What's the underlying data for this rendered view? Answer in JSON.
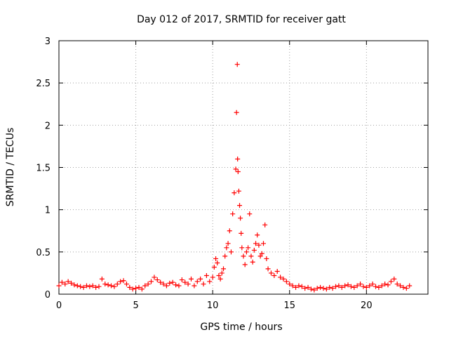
{
  "chart_data": {
    "type": "scatter",
    "title": "Day 012 of 2017, SRMTID for receiver gatt",
    "xlabel": "GPS time / hours",
    "ylabel": "SRMTID / TECUs",
    "xlim": [
      0,
      24
    ],
    "ylim": [
      0,
      3
    ],
    "x_ticks": [
      0,
      5,
      10,
      15,
      20
    ],
    "x_tick_labels": [
      "0",
      "5",
      "10",
      "15",
      "20"
    ],
    "y_ticks": [
      0,
      0.5,
      1,
      1.5,
      2,
      2.5,
      3
    ],
    "y_tick_labels": [
      "0",
      "0.5",
      "1",
      "1.5",
      "2",
      "2.5",
      "3"
    ],
    "grid": true,
    "marker": "+",
    "series": [
      {
        "name": "SRMTID",
        "color": "#ff0000",
        "x": [
          0.0,
          0.2,
          0.4,
          0.6,
          0.8,
          1.0,
          1.2,
          1.4,
          1.6,
          1.8,
          2.0,
          2.2,
          2.4,
          2.6,
          2.8,
          3.0,
          3.2,
          3.4,
          3.6,
          3.8,
          4.0,
          4.2,
          4.4,
          4.6,
          4.8,
          5.0,
          5.2,
          5.4,
          5.6,
          5.8,
          6.0,
          6.2,
          6.4,
          6.6,
          6.8,
          7.0,
          7.2,
          7.4,
          7.6,
          7.8,
          8.0,
          8.2,
          8.4,
          8.6,
          8.8,
          9.0,
          9.2,
          9.4,
          9.6,
          9.8,
          10.0,
          10.1,
          10.2,
          10.3,
          10.4,
          10.5,
          10.6,
          10.7,
          10.8,
          10.9,
          11.0,
          11.1,
          11.2,
          11.3,
          11.4,
          11.5,
          11.55,
          11.6,
          11.62,
          11.65,
          11.7,
          11.75,
          11.8,
          11.85,
          11.9,
          12.0,
          12.1,
          12.2,
          12.3,
          12.4,
          12.5,
          12.6,
          12.7,
          12.8,
          12.9,
          13.0,
          13.1,
          13.2,
          13.3,
          13.4,
          13.5,
          13.6,
          13.8,
          14.0,
          14.2,
          14.4,
          14.6,
          14.8,
          15.0,
          15.2,
          15.4,
          15.6,
          15.8,
          16.0,
          16.2,
          16.4,
          16.6,
          16.8,
          17.0,
          17.2,
          17.4,
          17.6,
          17.8,
          18.0,
          18.2,
          18.4,
          18.6,
          18.8,
          19.0,
          19.2,
          19.4,
          19.6,
          19.8,
          20.0,
          20.2,
          20.4,
          20.6,
          20.8,
          21.0,
          21.2,
          21.4,
          21.6,
          21.8,
          22.0,
          22.2,
          22.4,
          22.6,
          22.8
        ],
        "y": [
          0.1,
          0.14,
          0.12,
          0.15,
          0.13,
          0.11,
          0.1,
          0.09,
          0.08,
          0.1,
          0.09,
          0.1,
          0.08,
          0.09,
          0.18,
          0.12,
          0.11,
          0.1,
          0.09,
          0.12,
          0.15,
          0.16,
          0.12,
          0.08,
          0.06,
          0.07,
          0.08,
          0.06,
          0.1,
          0.12,
          0.15,
          0.2,
          0.17,
          0.14,
          0.12,
          0.1,
          0.13,
          0.14,
          0.11,
          0.1,
          0.17,
          0.14,
          0.12,
          0.18,
          0.1,
          0.15,
          0.18,
          0.12,
          0.22,
          0.15,
          0.2,
          0.32,
          0.42,
          0.37,
          0.22,
          0.18,
          0.25,
          0.3,
          0.45,
          0.55,
          0.6,
          0.75,
          0.5,
          0.95,
          1.2,
          1.48,
          2.15,
          2.72,
          1.6,
          1.45,
          1.22,
          1.05,
          0.9,
          0.72,
          0.55,
          0.45,
          0.35,
          0.5,
          0.55,
          0.95,
          0.45,
          0.38,
          0.52,
          0.6,
          0.7,
          0.58,
          0.45,
          0.48,
          0.6,
          0.82,
          0.42,
          0.3,
          0.25,
          0.22,
          0.27,
          0.2,
          0.18,
          0.15,
          0.12,
          0.1,
          0.08,
          0.1,
          0.09,
          0.07,
          0.08,
          0.06,
          0.05,
          0.07,
          0.08,
          0.07,
          0.06,
          0.08,
          0.07,
          0.09,
          0.1,
          0.08,
          0.1,
          0.11,
          0.09,
          0.08,
          0.1,
          0.12,
          0.09,
          0.08,
          0.1,
          0.12,
          0.09,
          0.08,
          0.1,
          0.12,
          0.11,
          0.15,
          0.18,
          0.12,
          0.1,
          0.08,
          0.07,
          0.1
        ]
      }
    ]
  }
}
